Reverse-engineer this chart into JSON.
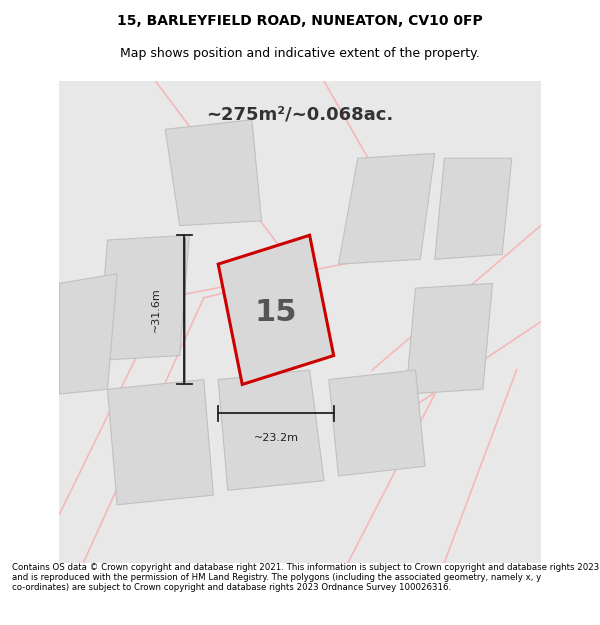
{
  "title_line1": "15, BARLEYFIELD ROAD, NUNEATON, CV10 0FP",
  "title_line2": "Map shows position and indicative extent of the property.",
  "area_label": "~275m²/~0.068ac.",
  "plot_number": "15",
  "dim_vertical": "~31.6m",
  "dim_horizontal": "~23.2m",
  "footer_text": "Contains OS data © Crown copyright and database right 2021. This information is subject to Crown copyright and database rights 2023 and is reproduced with the permission of HM Land Registry. The polygons (including the associated geometry, namely x, y co-ordinates) are subject to Crown copyright and database rights 2023 Ordnance Survey 100026316.",
  "bg_color": "#f0f0f0",
  "map_bg": "#e8e8e8",
  "plot_fill": "#d8d8d8",
  "highlight_color": "#cc0000",
  "neighbor_color": "#d8d8d8",
  "road_color": "#f5b8b8",
  "white": "#ffffff"
}
